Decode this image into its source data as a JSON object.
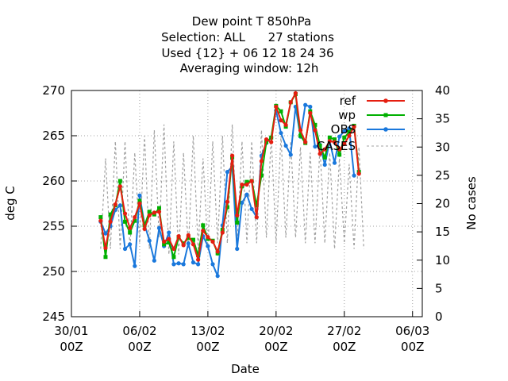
{
  "chart_data": {
    "type": "line",
    "title": [
      "Dew point T 850hPa",
      "Selection: ALL      27 stations",
      "Used {12} + 06 12 18 24 36",
      "Averaging window: 12h"
    ],
    "xlabel": "Date",
    "ylabel": "deg C",
    "y2label": "No cases",
    "xlim": [
      0,
      36
    ],
    "ylim": [
      245,
      270
    ],
    "y2lim": [
      0,
      40
    ],
    "x_ticks": [
      {
        "pos": 0,
        "l1": "30/01",
        "l2": "00Z"
      },
      {
        "pos": 7,
        "l1": "06/02",
        "l2": "00Z"
      },
      {
        "pos": 14,
        "l1": "13/02",
        "l2": "00Z"
      },
      {
        "pos": 21,
        "l1": "20/02",
        "l2": "00Z"
      },
      {
        "pos": 28,
        "l1": "27/02",
        "l2": "00Z"
      },
      {
        "pos": 35,
        "l1": "06/03",
        "l2": "00Z"
      }
    ],
    "y_ticks": [
      245,
      250,
      255,
      260,
      265,
      270
    ],
    "y2_ticks": [
      0,
      5,
      10,
      15,
      20,
      25,
      30,
      35,
      40
    ],
    "legend_position": "top-right",
    "series": [
      {
        "name": "ref",
        "color": "#e51e10",
        "axis": "left",
        "marker": "dot",
        "x": [
          3,
          3.5,
          4,
          4.5,
          5,
          5.5,
          6,
          6.5,
          7,
          7.5,
          8,
          8.5,
          9,
          9.5,
          10,
          10.5,
          11,
          11.5,
          12,
          12.5,
          13,
          13.5,
          14,
          14.5,
          15,
          15.5,
          16,
          16.5,
          17,
          17.5,
          18,
          18.5,
          19,
          19.5,
          20,
          20.5,
          21,
          21.5,
          22,
          22.5,
          23,
          23.5,
          24,
          24.5,
          25,
          25.5,
          26,
          26.5,
          27,
          27.5,
          28,
          28.5,
          29,
          29.5,
          30
        ],
        "values": [
          255.6,
          252.6,
          255.5,
          257.4,
          259.4,
          256.4,
          254.8,
          256.0,
          257.5,
          254.7,
          256.2,
          256.5,
          256.6,
          253.3,
          253.6,
          252.5,
          253.9,
          252.9,
          254.0,
          253.0,
          251.3,
          254.5,
          253.8,
          253.3,
          252.2,
          254.3,
          257.7,
          262.8,
          256.2,
          259.6,
          259.6,
          260.0,
          256.0,
          262.2,
          264.6,
          264.3,
          268.2,
          266.7,
          266.2,
          268.7,
          269.7,
          265.6,
          264.3,
          267.5,
          265.6,
          263.0,
          263.5,
          264.4,
          264.3,
          263.5,
          264.1,
          265.0,
          266.0,
          260.8,
          null
        ]
      },
      {
        "name": "wp",
        "color": "#00b000",
        "axis": "left",
        "marker": "square",
        "x": [
          3,
          3.5,
          4,
          4.5,
          5,
          5.5,
          6,
          6.5,
          7,
          7.5,
          8,
          8.5,
          9,
          9.5,
          10,
          10.5,
          11,
          11.5,
          12,
          12.5,
          13,
          13.5,
          14,
          14.5,
          15,
          15.5,
          16,
          16.5,
          17,
          17.5,
          18,
          18.5,
          19,
          19.5,
          20,
          20.5,
          21,
          21.5,
          22,
          22.5,
          23,
          23.5,
          24,
          24.5,
          25,
          25.5,
          26,
          26.5,
          27,
          27.5,
          28,
          28.5,
          29,
          29.5,
          30
        ],
        "values": [
          256.0,
          251.6,
          256.3,
          257.3,
          260.0,
          255.5,
          254.3,
          255.6,
          257.8,
          255.1,
          256.6,
          256.3,
          257.0,
          253.0,
          253.2,
          251.6,
          253.8,
          253.1,
          253.7,
          253.5,
          251.8,
          255.1,
          253.6,
          253.4,
          252.0,
          254.6,
          257.1,
          262.6,
          255.4,
          259.4,
          259.9,
          260.0,
          257.3,
          260.6,
          264.3,
          264.8,
          268.3,
          267.7,
          266.0,
          268.7,
          269.6,
          265.0,
          264.2,
          267.7,
          266.2,
          263.9,
          262.6,
          264.8,
          264.6,
          262.9,
          264.8,
          265.4,
          266.1,
          261.0,
          null
        ]
      },
      {
        "name": "OBS",
        "color": "#1a78dc",
        "axis": "left",
        "marker": "dot",
        "x": [
          3,
          3.5,
          4,
          4.5,
          5,
          5.5,
          6,
          6.5,
          7,
          7.5,
          8,
          8.5,
          9,
          9.5,
          10,
          10.5,
          11,
          11.5,
          12,
          12.5,
          13,
          13.5,
          14,
          14.5,
          15,
          15.5,
          16,
          16.5,
          17,
          17.5,
          18,
          18.5,
          19,
          19.5,
          20,
          20.5,
          21,
          21.5,
          22,
          22.5,
          23,
          23.5,
          24,
          24.5,
          25,
          25.5,
          26,
          26.5,
          27,
          27.5,
          28,
          28.5,
          29,
          29.5,
          30
        ],
        "values": [
          255.5,
          254.2,
          255.0,
          256.8,
          257.3,
          252.5,
          253.0,
          250.6,
          258.4,
          255.2,
          253.4,
          251.2,
          254.8,
          252.8,
          254.3,
          250.8,
          250.9,
          250.8,
          253.1,
          251.0,
          250.8,
          253.9,
          252.8,
          250.8,
          249.5,
          255.1,
          261.0,
          261.6,
          252.5,
          257.6,
          258.5,
          256.9,
          256.0,
          262.8,
          264.2,
          264.8,
          267.8,
          265.3,
          263.9,
          262.9,
          268.2,
          264.9,
          268.4,
          268.2,
          263.8,
          264.0,
          261.8,
          264.4,
          262.0,
          264.9,
          265.5,
          265.8,
          260.6,
          null,
          null
        ]
      },
      {
        "name": "CASES",
        "color": "#a0a0a0",
        "axis": "right",
        "dash": "3,3",
        "x": [
          3,
          3.5,
          4,
          4.5,
          5,
          5.5,
          6,
          6.5,
          7,
          7.5,
          8,
          8.5,
          9,
          9.5,
          10,
          10.5,
          11,
          11.5,
          12,
          12.5,
          13,
          13.5,
          14,
          14.5,
          15,
          15.5,
          16,
          16.5,
          17,
          17.5,
          18,
          18.5,
          19,
          19.5,
          20,
          20.5,
          21,
          21.5,
          22,
          22.5,
          23,
          23.5,
          24,
          24.5,
          25,
          25.5,
          26,
          26.5,
          27,
          27.5,
          28,
          28.5,
          29,
          29.5,
          30
        ],
        "values": [
          12,
          28,
          12,
          31,
          12,
          31,
          12,
          29,
          13,
          32,
          12,
          33,
          14,
          34,
          11,
          31,
          11,
          29,
          12,
          32,
          12,
          28,
          12,
          31,
          13,
          32,
          13,
          34,
          13,
          31,
          13,
          31,
          13,
          33,
          14,
          32,
          13,
          32,
          14,
          31,
          14,
          30,
          13,
          29,
          13,
          30,
          13,
          29,
          12,
          28,
          13,
          27,
          12,
          30,
          12
        ]
      }
    ]
  }
}
